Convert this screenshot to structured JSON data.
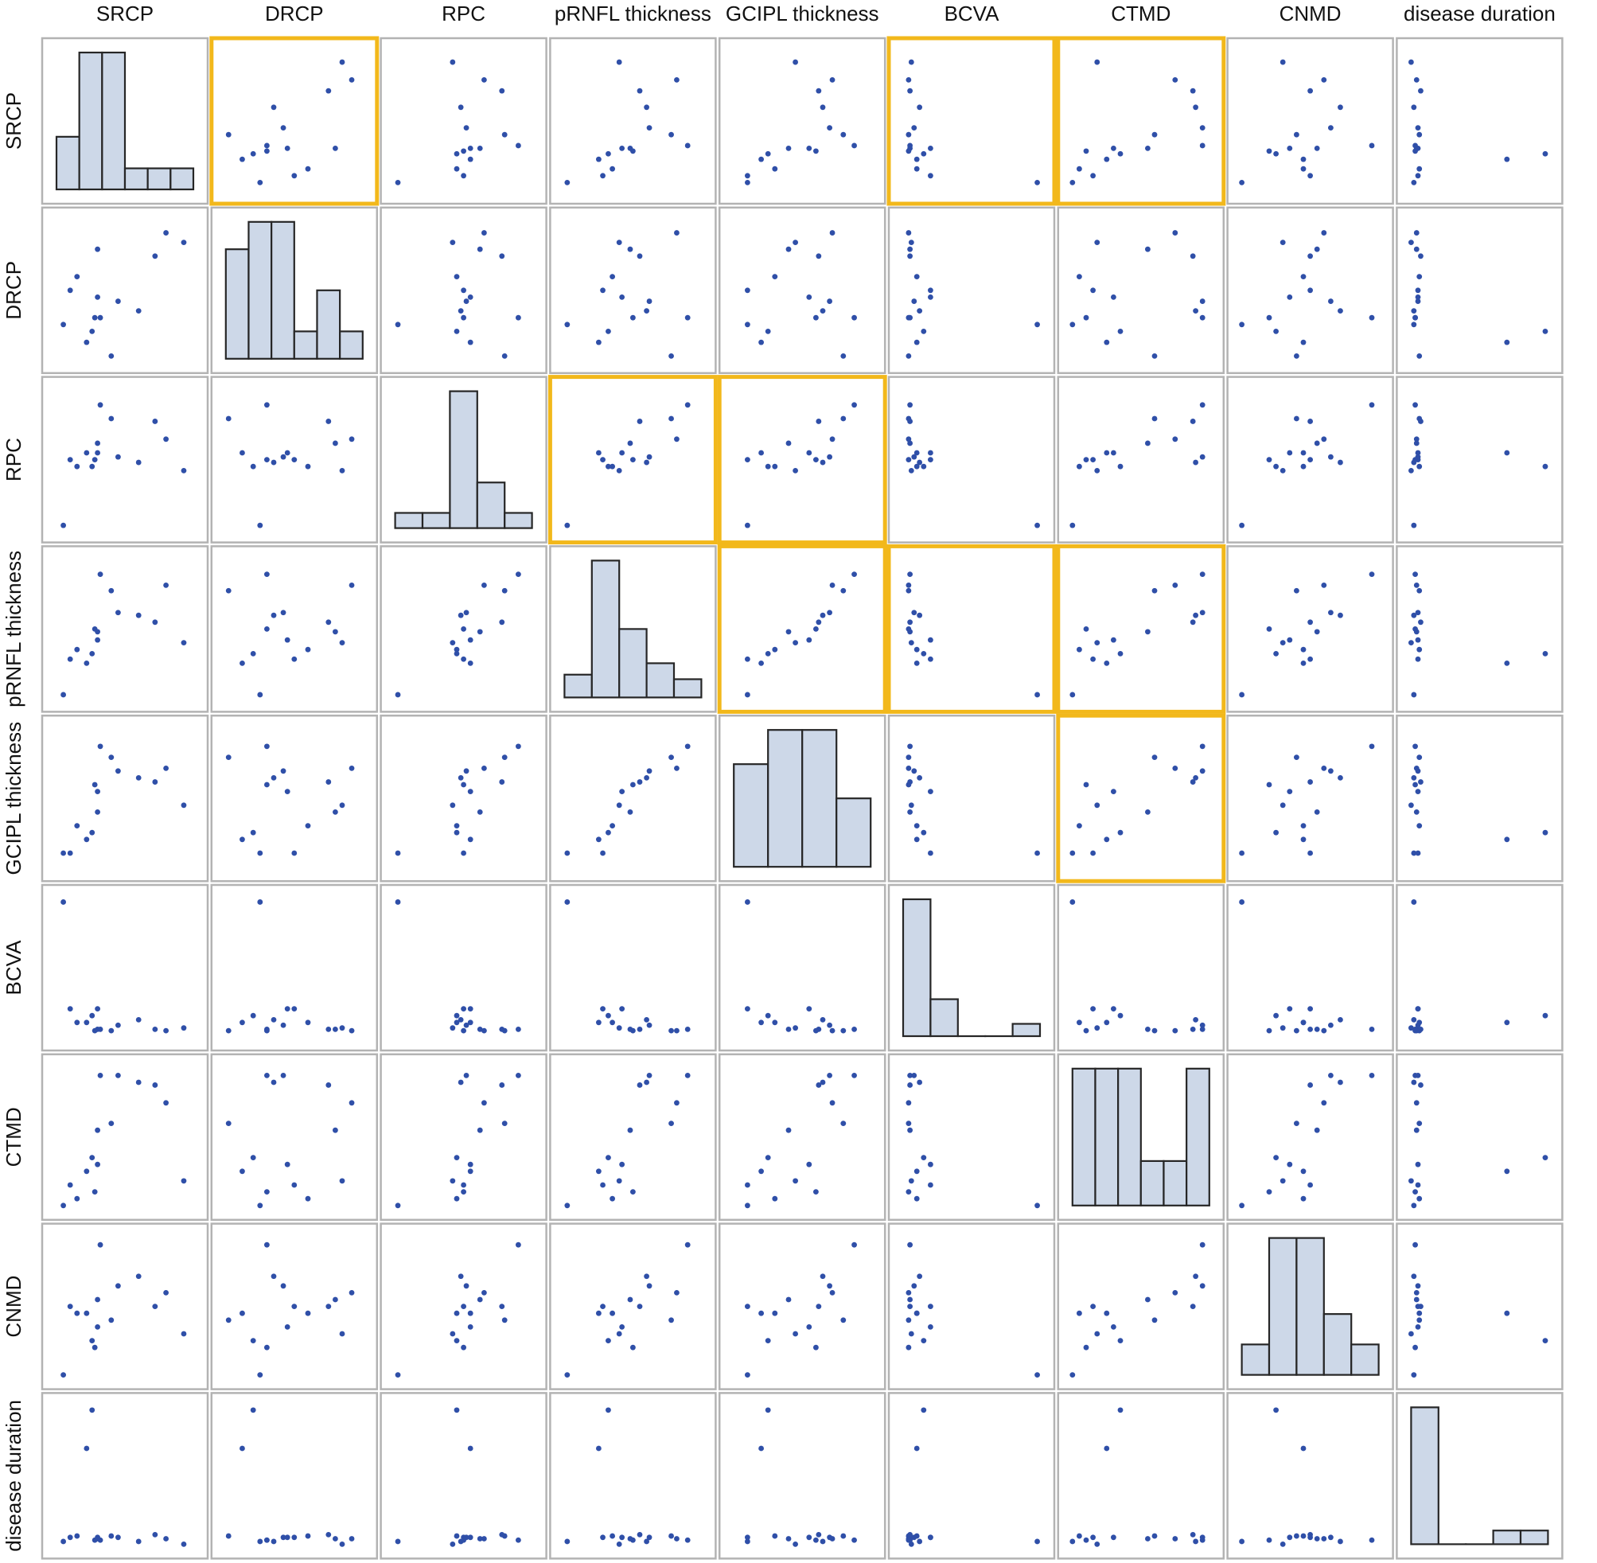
{
  "chart_data": {
    "type": "scatter",
    "subtype": "scatterplot-matrix",
    "variables": [
      "SRCP",
      "DRCP",
      "RPC",
      "pRNFL thickness",
      "GCIPL thickness",
      "BCVA",
      "CTMD",
      "CNMD",
      "disease duration"
    ],
    "colors": {
      "frame": "#b3b3b3",
      "highlight": "#f2b81b",
      "bar_fill": "#cdd8e8",
      "bar_stroke": "#262626",
      "point": "#2f4fa8"
    },
    "highlighted_cells": [
      [
        "SRCP",
        "DRCP"
      ],
      [
        "SRCP",
        "BCVA"
      ],
      [
        "SRCP",
        "CTMD"
      ],
      [
        "RPC",
        "pRNFL thickness"
      ],
      [
        "RPC",
        "GCIPL thickness"
      ],
      [
        "pRNFL thickness",
        "GCIPL thickness"
      ],
      [
        "pRNFL thickness",
        "BCVA"
      ],
      [
        "pRNFL thickness",
        "CTMD"
      ],
      [
        "GCIPL thickness",
        "CTMD"
      ]
    ],
    "observations": {
      "SRCP": [
        0.05,
        0.1,
        0.22,
        0.26,
        0.3,
        0.32,
        0.4,
        0.45,
        0.6,
        0.72,
        0.8,
        0.93,
        0.3,
        0.28,
        0.15
      ],
      "DRCP": [
        0.25,
        0.5,
        0.12,
        0.2,
        0.8,
        0.3,
        0.02,
        0.42,
        0.35,
        0.75,
        0.92,
        0.85,
        0.45,
        0.3,
        0.6
      ],
      "RPC": [
        0.02,
        0.5,
        0.55,
        0.45,
        0.62,
        0.9,
        0.8,
        0.52,
        0.48,
        0.78,
        0.65,
        0.42,
        0.55,
        0.5,
        0.45
      ],
      "pRNFL thickness": [
        0.02,
        0.28,
        0.25,
        0.32,
        0.48,
        0.9,
        0.78,
        0.62,
        0.6,
        0.55,
        0.82,
        0.4,
        0.42,
        0.5,
        0.35
      ],
      "GCIPL thickness": [
        0.1,
        0.1,
        0.2,
        0.25,
        0.4,
        0.88,
        0.8,
        0.7,
        0.65,
        0.62,
        0.72,
        0.45,
        0.55,
        0.6,
        0.3
      ],
      "BCVA": [
        0.98,
        0.2,
        0.1,
        0.15,
        0.05,
        0.05,
        0.04,
        0.08,
        0.12,
        0.05,
        0.04,
        0.06,
        0.2,
        0.04,
        0.1
      ],
      "CTMD": [
        0.0,
        0.15,
        0.25,
        0.35,
        0.55,
        0.95,
        0.6,
        0.95,
        0.9,
        0.88,
        0.75,
        0.18,
        0.3,
        0.1,
        0.05
      ],
      "CNMD": [
        0.0,
        0.5,
        0.45,
        0.25,
        0.55,
        0.95,
        0.4,
        0.65,
        0.72,
        0.5,
        0.6,
        0.3,
        0.35,
        0.2,
        0.45
      ],
      "disease duration": [
        0.02,
        0.05,
        0.7,
        0.98,
        0.04,
        0.03,
        0.06,
        0.05,
        0.02,
        0.07,
        0.04,
        0.0,
        0.05,
        0.03,
        0.06
      ]
    },
    "histograms": {
      "SRCP": [
        5,
        13,
        13,
        2,
        2,
        2
      ],
      "DRCP": [
        8,
        10,
        10,
        2,
        5,
        2
      ],
      "RPC": [
        1,
        1,
        9,
        3,
        1
      ],
      "pRNFL thickness": [
        1,
        6,
        3,
        1.5,
        0.8
      ],
      "GCIPL thickness": [
        3,
        4,
        4,
        2
      ],
      "BCVA": [
        10,
        2.7,
        0,
        0,
        0.9
      ],
      "CTMD": [
        4,
        4,
        4,
        1.3,
        1.3,
        4
      ],
      "CNMD": [
        2,
        9,
        9,
        4,
        2
      ],
      "disease duration": [
        10,
        0,
        0,
        1,
        1
      ]
    }
  }
}
